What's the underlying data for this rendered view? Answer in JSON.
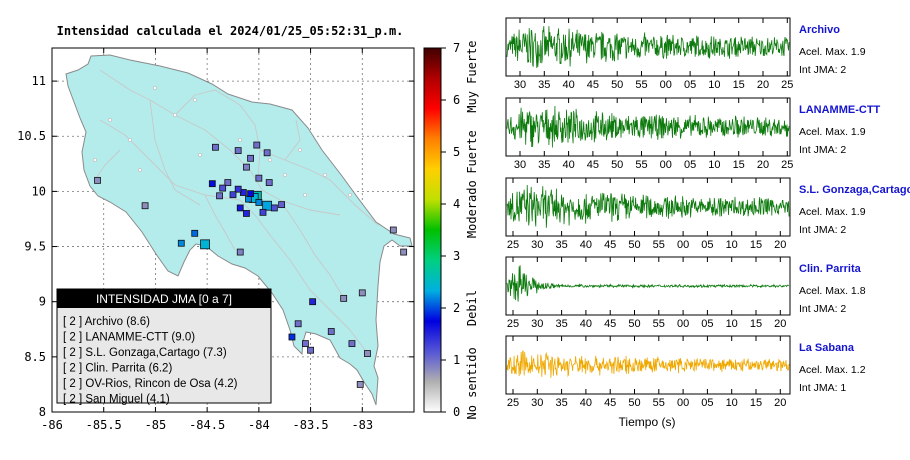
{
  "chart_data": [
    {
      "type": "scatter",
      "title": "Intensidad calculada el 2024/01/25_05:52:31_p.m.",
      "xlim": [
        -86,
        -82.5
      ],
      "ylim": [
        8,
        11.3
      ],
      "xticks": [
        -86,
        -85.5,
        -85,
        -84.5,
        -84,
        -83.5,
        -83
      ],
      "xtick_labels": [
        "-86",
        "-85.5",
        "-85",
        "-84.5",
        "-84",
        "-83.5",
        "-83"
      ],
      "yticks": [
        8,
        8.5,
        9,
        9.5,
        10,
        10.5,
        11
      ],
      "ytick_labels": [
        "8",
        "8.5",
        "9",
        "9.5",
        "10",
        "10.5",
        "11"
      ],
      "grid": true,
      "colorbar": {
        "min": 0,
        "max": 7,
        "tick_labels": [
          "0",
          "1",
          "2",
          "3",
          "4",
          "5",
          "6",
          "7"
        ],
        "category_labels": [
          "No sentido",
          "Debil",
          "Moderado",
          "Fuerte",
          "Muy Fuerte"
        ],
        "colors": [
          "#ffffff",
          "#b0b0b0",
          "#5555d6",
          "#0000e0",
          "#00b0e0",
          "#00d080",
          "#00c000",
          "#c0e000",
          "#ffd000",
          "#ff8000",
          "#ff0000",
          "#b00000",
          "#400000"
        ]
      },
      "stations": [
        {
          "lon": -84.02,
          "lat": 9.96,
          "value": 2.6
        },
        {
          "lon": -84.05,
          "lat": 9.94,
          "value": 2.4
        },
        {
          "lon": -84.1,
          "lat": 9.93,
          "value": 2.2
        },
        {
          "lon": -84.0,
          "lat": 9.9,
          "value": 2.2
        },
        {
          "lon": -83.92,
          "lat": 9.87,
          "value": 2.3
        },
        {
          "lon": -84.08,
          "lat": 9.98,
          "value": 1.7
        },
        {
          "lon": -84.15,
          "lat": 9.99,
          "value": 1.5
        },
        {
          "lon": -84.2,
          "lat": 10.02,
          "value": 1.4
        },
        {
          "lon": -84.25,
          "lat": 9.97,
          "value": 1.3
        },
        {
          "lon": -84.18,
          "lat": 9.85,
          "value": 1.6
        },
        {
          "lon": -84.12,
          "lat": 9.8,
          "value": 1.5
        },
        {
          "lon": -83.96,
          "lat": 9.81,
          "value": 1.3
        },
        {
          "lon": -83.85,
          "lat": 9.85,
          "value": 1.2
        },
        {
          "lon": -83.78,
          "lat": 9.88,
          "value": 1.1
        },
        {
          "lon": -83.9,
          "lat": 10.08,
          "value": 1.0
        },
        {
          "lon": -84.0,
          "lat": 10.12,
          "value": 1.0
        },
        {
          "lon": -84.12,
          "lat": 10.22,
          "value": 0.9
        },
        {
          "lon": -84.3,
          "lat": 10.08,
          "value": 1.0
        },
        {
          "lon": -84.45,
          "lat": 10.07,
          "value": 1.8
        },
        {
          "lon": -84.35,
          "lat": 10.03,
          "value": 1.2
        },
        {
          "lon": -84.38,
          "lat": 9.96,
          "value": 1.0
        },
        {
          "lon": -84.42,
          "lat": 10.4,
          "value": 1.0
        },
        {
          "lon": -84.02,
          "lat": 10.42,
          "value": 1.0
        },
        {
          "lon": -83.92,
          "lat": 10.35,
          "value": 1.0
        },
        {
          "lon": -85.1,
          "lat": 9.87,
          "value": 0.8
        },
        {
          "lon": -84.62,
          "lat": 9.62,
          "value": 2.1
        },
        {
          "lon": -84.75,
          "lat": 9.53,
          "value": 2.2
        },
        {
          "lon": -84.52,
          "lat": 9.52,
          "value": 2.4
        },
        {
          "lon": -84.18,
          "lat": 9.45,
          "value": 0.9
        },
        {
          "lon": -85.56,
          "lat": 10.1,
          "value": 0.8
        },
        {
          "lon": -83.0,
          "lat": 9.08,
          "value": 0.8
        },
        {
          "lon": -83.18,
          "lat": 9.03,
          "value": 0.8
        },
        {
          "lon": -83.48,
          "lat": 9.0,
          "value": 1.5
        },
        {
          "lon": -83.62,
          "lat": 8.8,
          "value": 1.0
        },
        {
          "lon": -83.68,
          "lat": 8.68,
          "value": 1.9
        },
        {
          "lon": -83.55,
          "lat": 8.62,
          "value": 1.0
        },
        {
          "lon": -83.5,
          "lat": 8.56,
          "value": 1.0
        },
        {
          "lon": -83.3,
          "lat": 8.73,
          "value": 1.0
        },
        {
          "lon": -83.1,
          "lat": 8.62,
          "value": 1.0
        },
        {
          "lon": -82.95,
          "lat": 8.53,
          "value": 0.8
        },
        {
          "lon": -83.02,
          "lat": 8.25,
          "value": 0.8
        },
        {
          "lon": -82.7,
          "lat": 9.65,
          "value": 0.8
        },
        {
          "lon": -82.6,
          "lat": 9.45,
          "value": 0.8
        },
        {
          "lon": -84.2,
          "lat": 10.37,
          "value": 1.0
        },
        {
          "lon": -84.08,
          "lat": 10.3,
          "value": 1.0
        }
      ],
      "legend": {
        "title": "INTENSIDAD JMA [0 a 7]",
        "entries": [
          "[ 2 ] Archivo (8.6)",
          "[ 2 ] LANAMME-CTT (9.0)",
          "[ 2 ] S.L. Gonzaga,Cartago (7.3)",
          "[ 2 ] Clin. Parrita (6.2)",
          "[ 2 ] OV-Rios, Rincon de Osa (4.2)",
          "[ 2 ] San Miguel (4.1)"
        ]
      }
    },
    {
      "type": "line",
      "xlabel": "Tiempo (s)",
      "series": [
        {
          "name": "Archivo",
          "line1": "Acel. Max. 1.9",
          "line2": "Int JMA: 2",
          "color": "#0c7a0c",
          "tick_labels": [
            "30",
            "35",
            "40",
            "45",
            "50",
            "55",
            "00",
            "05",
            "10",
            "15",
            "20",
            "25"
          ],
          "amplitude_profile": "sustained",
          "peak_amplitude": 1.9
        },
        {
          "name": "LANAMME-CTT",
          "line1": "Acel. Max. 1.9",
          "line2": "Int JMA: 2",
          "color": "#0c7a0c",
          "tick_labels": [
            "30",
            "35",
            "40",
            "45",
            "50",
            "55",
            "00",
            "05",
            "10",
            "15",
            "20",
            "25"
          ],
          "amplitude_profile": "sustained",
          "peak_amplitude": 1.9
        },
        {
          "name": "S.L. Gonzaga,Cartago",
          "line1": "Acel. Max. 1.9",
          "line2": "Int JMA: 2",
          "color": "#0c7a0c",
          "tick_labels": [
            "25",
            "30",
            "35",
            "40",
            "45",
            "50",
            "55",
            "00",
            "05",
            "10",
            "15",
            "20"
          ],
          "amplitude_profile": "decaying",
          "peak_amplitude": 1.9
        },
        {
          "name": "Clin. Parrita",
          "line1": "Acel. Max. 1.8",
          "line2": "Int JMA: 2",
          "color": "#0c7a0c",
          "tick_labels": [
            "25",
            "30",
            "35",
            "40",
            "45",
            "50",
            "55",
            "00",
            "05",
            "10",
            "15",
            "20"
          ],
          "amplitude_profile": "impulsive",
          "peak_amplitude": 1.8
        },
        {
          "name": "La Sabana",
          "line1": "Acel. Max. 1.2",
          "line2": "Int JMA: 1",
          "color": "#f0a800",
          "tick_labels": [
            "25",
            "30",
            "35",
            "40",
            "45",
            "50",
            "55",
            "00",
            "05",
            "10",
            "15",
            "20"
          ],
          "amplitude_profile": "sustained",
          "peak_amplitude": 1.2
        }
      ]
    }
  ]
}
